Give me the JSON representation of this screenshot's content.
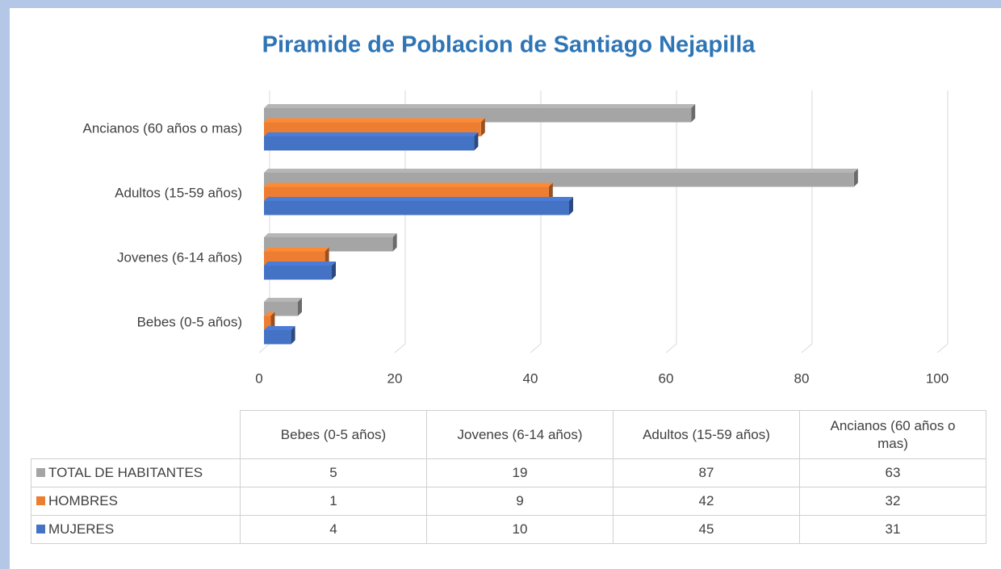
{
  "chart_data": {
    "type": "bar",
    "orientation": "horizontal",
    "title": "Piramide de Poblacion de Santiago Nejapilla",
    "categories": [
      "Bebes (0-5 años)",
      "Jovenes (6-14 años)",
      "Adultos (15-59 años)",
      "Ancianos (60 años o mas)"
    ],
    "series": [
      {
        "name": "TOTAL DE HABITANTES",
        "color": "#a5a5a5",
        "values": [
          5,
          19,
          87,
          63
        ]
      },
      {
        "name": "HOMBRES",
        "color": "#ed7d31",
        "values": [
          1,
          9,
          42,
          32
        ]
      },
      {
        "name": "MUJERES",
        "color": "#4472c4",
        "values": [
          4,
          10,
          45,
          31
        ]
      }
    ],
    "xlim": [
      0,
      100
    ],
    "xticks": [
      0,
      20,
      40,
      60,
      80,
      100
    ],
    "grid": true,
    "data_table": true
  }
}
